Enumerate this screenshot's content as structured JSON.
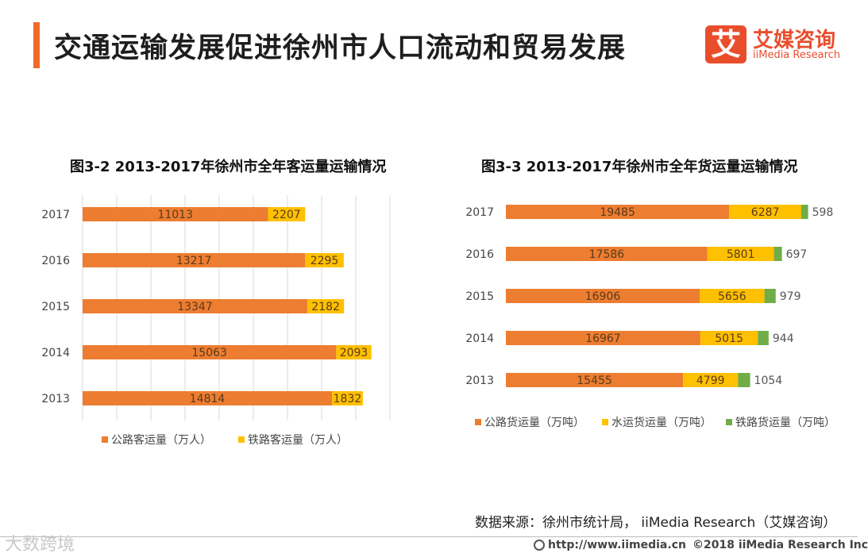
{
  "header": {
    "title": "交通运输发展促进徐州市人口流动和贸易发展",
    "logo_char": "艾",
    "logo_cn": "艾媒咨询",
    "logo_en": "iiMedia Research"
  },
  "chart_data": [
    {
      "type": "bar",
      "orientation": "horizontal",
      "stacked": true,
      "title": "图3-2 2013-2017年徐州市全年客运量运输情况",
      "categories": [
        "2017",
        "2016",
        "2015",
        "2014",
        "2013"
      ],
      "series": [
        {
          "name": "公路客运量（万人）",
          "color": "#ed7d31",
          "values": [
            11013,
            13217,
            13347,
            15063,
            14814
          ]
        },
        {
          "name": "铁路客运量（万人）",
          "color": "#ffc000",
          "values": [
            2207,
            2295,
            2182,
            2093,
            1832
          ]
        }
      ],
      "xlim": [
        0,
        20000
      ],
      "grid": true,
      "legend": "bottom"
    },
    {
      "type": "bar",
      "orientation": "horizontal",
      "stacked": true,
      "title": "图3-3 2013-2017年徐州市全年货运量运输情况",
      "categories": [
        "2017",
        "2016",
        "2015",
        "2014",
        "2013"
      ],
      "series": [
        {
          "name": "公路货运量（万吨）",
          "color": "#ed7d31",
          "values": [
            19485,
            17586,
            16906,
            16967,
            15455
          ]
        },
        {
          "name": "水运货运量（万吨）",
          "color": "#ffc000",
          "values": [
            6287,
            5801,
            5656,
            5015,
            4799
          ]
        },
        {
          "name": "铁路货运量（万吨）",
          "color": "#70ad47",
          "values": [
            598,
            697,
            979,
            944,
            1054
          ]
        }
      ],
      "xlim": [
        0,
        30000
      ],
      "grid": false,
      "legend": "bottom"
    }
  ],
  "footer": {
    "source": "数据来源：徐州市统计局， iiMedia Research（艾媒咨询）",
    "url": "http://www.iimedia.cn",
    "copyright": "©2018 iiMedia Research Inc",
    "watermark": "大数跨境"
  }
}
